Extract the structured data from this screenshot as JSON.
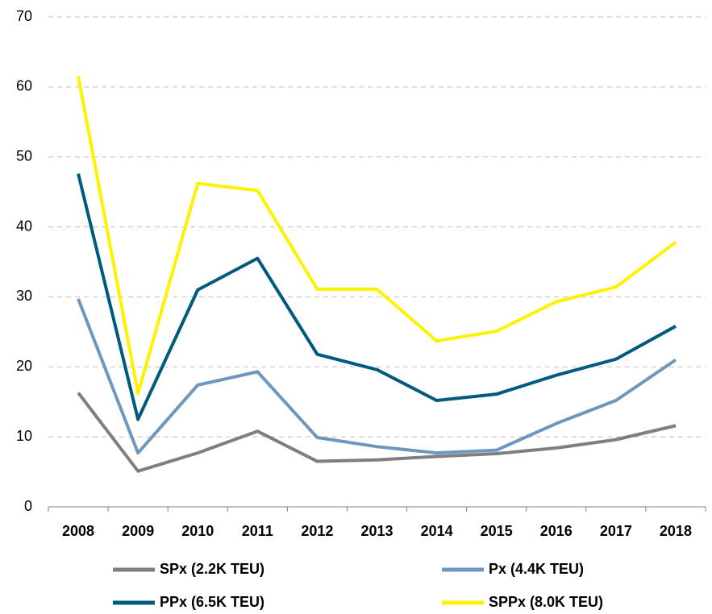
{
  "chart_data": {
    "type": "line",
    "categories": [
      "2008",
      "2009",
      "2010",
      "2011",
      "2012",
      "2013",
      "2014",
      "2015",
      "2016",
      "2017",
      "2018"
    ],
    "series": [
      {
        "name": "SPx (2.2K TEU)",
        "color": "#7f7f7f",
        "values": [
          16.3,
          5.1,
          7.7,
          10.8,
          6.5,
          6.7,
          7.2,
          7.6,
          8.4,
          9.6,
          11.6
        ]
      },
      {
        "name": "Px (4.4K TEU)",
        "color": "#6e97c0",
        "values": [
          29.7,
          7.7,
          17.4,
          19.3,
          9.9,
          8.6,
          7.7,
          8.1,
          11.9,
          15.2,
          21.0
        ]
      },
      {
        "name": "PPx (6.5K TEU)",
        "color": "#005a7f",
        "values": [
          47.6,
          12.5,
          31.0,
          35.5,
          21.8,
          19.6,
          15.2,
          16.1,
          18.8,
          21.1,
          25.8
        ]
      },
      {
        "name": "SPPx (8.0K TEU)",
        "color": "#fff200",
        "values": [
          61.5,
          16.2,
          46.2,
          45.2,
          31.1,
          31.1,
          23.7,
          25.1,
          29.3,
          31.4,
          37.8
        ]
      }
    ],
    "ylim": [
      0,
      70
    ],
    "yticks": [
      0,
      10,
      20,
      30,
      40,
      50,
      60,
      70
    ],
    "grid": true,
    "legend": "bottom"
  }
}
